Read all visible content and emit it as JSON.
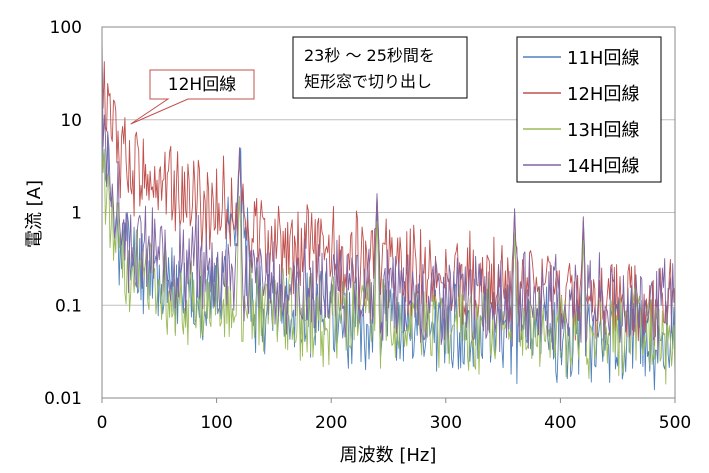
{
  "chart_data": {
    "type": "line",
    "xlabel": "周波数 [Hz]",
    "ylabel": "電流 [A]",
    "xlim": [
      0,
      500
    ],
    "ylim": [
      0.01,
      100
    ],
    "yscale": "log",
    "x_ticks": [
      0,
      100,
      200,
      300,
      400,
      500
    ],
    "x_tick_labels": [
      "0",
      "100",
      "200",
      "300",
      "400",
      "500"
    ],
    "y_ticks": [
      0.01,
      0.1,
      1,
      10,
      100
    ],
    "y_tick_labels": [
      "0.01",
      "0.1",
      "1",
      "10",
      "100"
    ],
    "grid": "horizontal",
    "legend_position": "top-right",
    "annotation_note": [
      "23秒 ～ 25秒間を",
      "矩形窓で切り出し"
    ],
    "callout": {
      "text": "12H回線",
      "target_x": 25,
      "target_y": 9
    },
    "series": [
      {
        "name": "11H回線",
        "color": "#4f81bd",
        "anchors": [
          [
            0,
            20
          ],
          [
            2,
            3
          ],
          [
            5,
            2.5
          ],
          [
            10,
            0.8
          ],
          [
            20,
            0.4
          ],
          [
            40,
            0.25
          ],
          [
            60,
            0.15
          ],
          [
            100,
            0.12
          ],
          [
            120,
            2.5
          ],
          [
            130,
            0.12
          ],
          [
            200,
            0.07
          ],
          [
            300,
            0.06
          ],
          [
            400,
            0.05
          ],
          [
            500,
            0.045
          ]
        ],
        "spikes": [
          [
            240,
            1.0
          ],
          [
            360,
            0.6
          ],
          [
            420,
            0.6
          ]
        ],
        "seed": 11
      },
      {
        "name": "12H回線",
        "color": "#c0504d",
        "anchors": [
          [
            0,
            30
          ],
          [
            3,
            15
          ],
          [
            10,
            6
          ],
          [
            20,
            4
          ],
          [
            40,
            2.5
          ],
          [
            60,
            2
          ],
          [
            80,
            1.5
          ],
          [
            100,
            1.2
          ],
          [
            115,
            1.0
          ],
          [
            130,
            0.6
          ],
          [
            150,
            0.5
          ],
          [
            200,
            0.35
          ],
          [
            250,
            0.25
          ],
          [
            300,
            0.2
          ],
          [
            350,
            0.15
          ],
          [
            400,
            0.12
          ],
          [
            450,
            0.1
          ],
          [
            500,
            0.09
          ]
        ],
        "spikes": [
          [
            120,
            4.5
          ],
          [
            240,
            1.5
          ],
          [
            360,
            1.0
          ],
          [
            420,
            0.8
          ]
        ],
        "seed": 12
      },
      {
        "name": "13H回線",
        "color": "#9bbb59",
        "anchors": [
          [
            0,
            4
          ],
          [
            3,
            2
          ],
          [
            8,
            1
          ],
          [
            20,
            0.3
          ],
          [
            40,
            0.2
          ],
          [
            60,
            0.15
          ],
          [
            100,
            0.1
          ],
          [
            130,
            0.09
          ],
          [
            200,
            0.07
          ],
          [
            300,
            0.06
          ],
          [
            400,
            0.05
          ],
          [
            500,
            0.045
          ]
        ],
        "spikes": [
          [
            120,
            1.5
          ],
          [
            240,
            0.8
          ],
          [
            360,
            0.6
          ],
          [
            420,
            0.5
          ]
        ],
        "seed": 13
      },
      {
        "name": "14H回線",
        "color": "#8064a2",
        "anchors": [
          [
            0,
            90
          ],
          [
            1,
            4
          ],
          [
            5,
            3
          ],
          [
            10,
            1.5
          ],
          [
            20,
            0.5
          ],
          [
            40,
            0.35
          ],
          [
            60,
            0.3
          ],
          [
            100,
            0.25
          ],
          [
            130,
            0.2
          ],
          [
            150,
            0.17
          ],
          [
            200,
            0.14
          ],
          [
            300,
            0.12
          ],
          [
            400,
            0.11
          ],
          [
            500,
            0.1
          ]
        ],
        "spikes": [
          [
            120,
            5
          ],
          [
            240,
            1.6
          ],
          [
            360,
            1.1
          ],
          [
            420,
            0.9
          ]
        ],
        "seed": 14
      }
    ]
  }
}
